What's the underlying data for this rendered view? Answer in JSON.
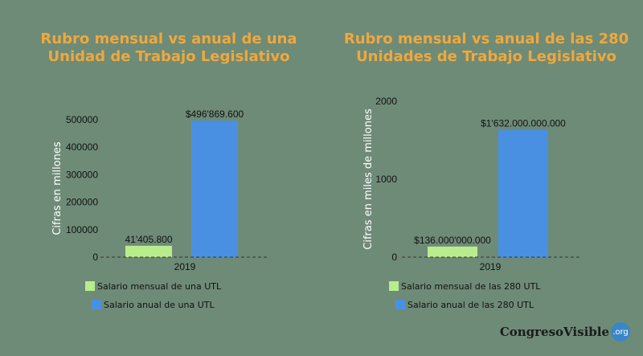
{
  "chart_data": [
    {
      "type": "bar",
      "title_lines": [
        "Rubro mensual vs anual de una",
        "Unidad de Trabajo Legislativo"
      ],
      "categories": [
        "2019"
      ],
      "ylabel": "Cifras en millones",
      "ylim": [
        0,
        500000
      ],
      "yticks": [
        "0",
        "100000",
        "200000",
        "300000",
        "400000",
        "500000"
      ],
      "series": [
        {
          "name": "Salario mensual de una UTL",
          "values": [
            41405.8
          ],
          "label": "41'405.800",
          "color": "#b9ec8c"
        },
        {
          "name": "Salario anual de una UTL",
          "values": [
            496869.6
          ],
          "label": "$496'869.600",
          "color": "#4a90e2"
        }
      ]
    },
    {
      "type": "bar",
      "title_lines": [
        "Rubro mensual vs anual de las 280",
        "Unidades de Trabajo Legislativo"
      ],
      "categories": [
        "2019"
      ],
      "ylabel": "Cifras en miles de millones",
      "ylim": [
        0,
        2000
      ],
      "yticks": [
        "0",
        "1000",
        "2000"
      ],
      "series": [
        {
          "name": "Salario mensual de las 280 UTL",
          "values": [
            136
          ],
          "label": "$136.000'000.000",
          "color": "#b9ec8c"
        },
        {
          "name": "Salario anual de las 280 UTL",
          "values": [
            1632
          ],
          "label": "$1'632.000.000.000",
          "color": "#4a90e2"
        }
      ]
    }
  ],
  "logo": {
    "text": "CongresoVisible",
    "badge": ".org"
  }
}
